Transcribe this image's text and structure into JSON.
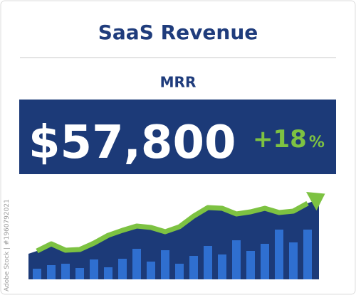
{
  "header": {
    "title": "SaaS Revenue"
  },
  "kpi": {
    "label": "MRR",
    "value": "$57,800",
    "change": "+18",
    "change_unit": "%"
  },
  "chart_data": {
    "type": "bar_line",
    "series": [
      {
        "name": null,
        "color": "#2f6fd0",
        "values": [
          15,
          20,
          22,
          16,
          28,
          17,
          29,
          43,
          25,
          41,
          22,
          33,
          47,
          35,
          55,
          40,
          50,
          70,
          52,
          70
        ]
      },
      {
        "name": null,
        "color": "#7dc242",
        "values": [
          40,
          50,
          41,
          42,
          51,
          62,
          69,
          75,
          73,
          67,
          74,
          89,
          101,
          100,
          92,
          95,
          100,
          94,
          96,
          107
        ]
      }
    ]
  },
  "watermark": "Adobe Stock | #1960792021"
}
